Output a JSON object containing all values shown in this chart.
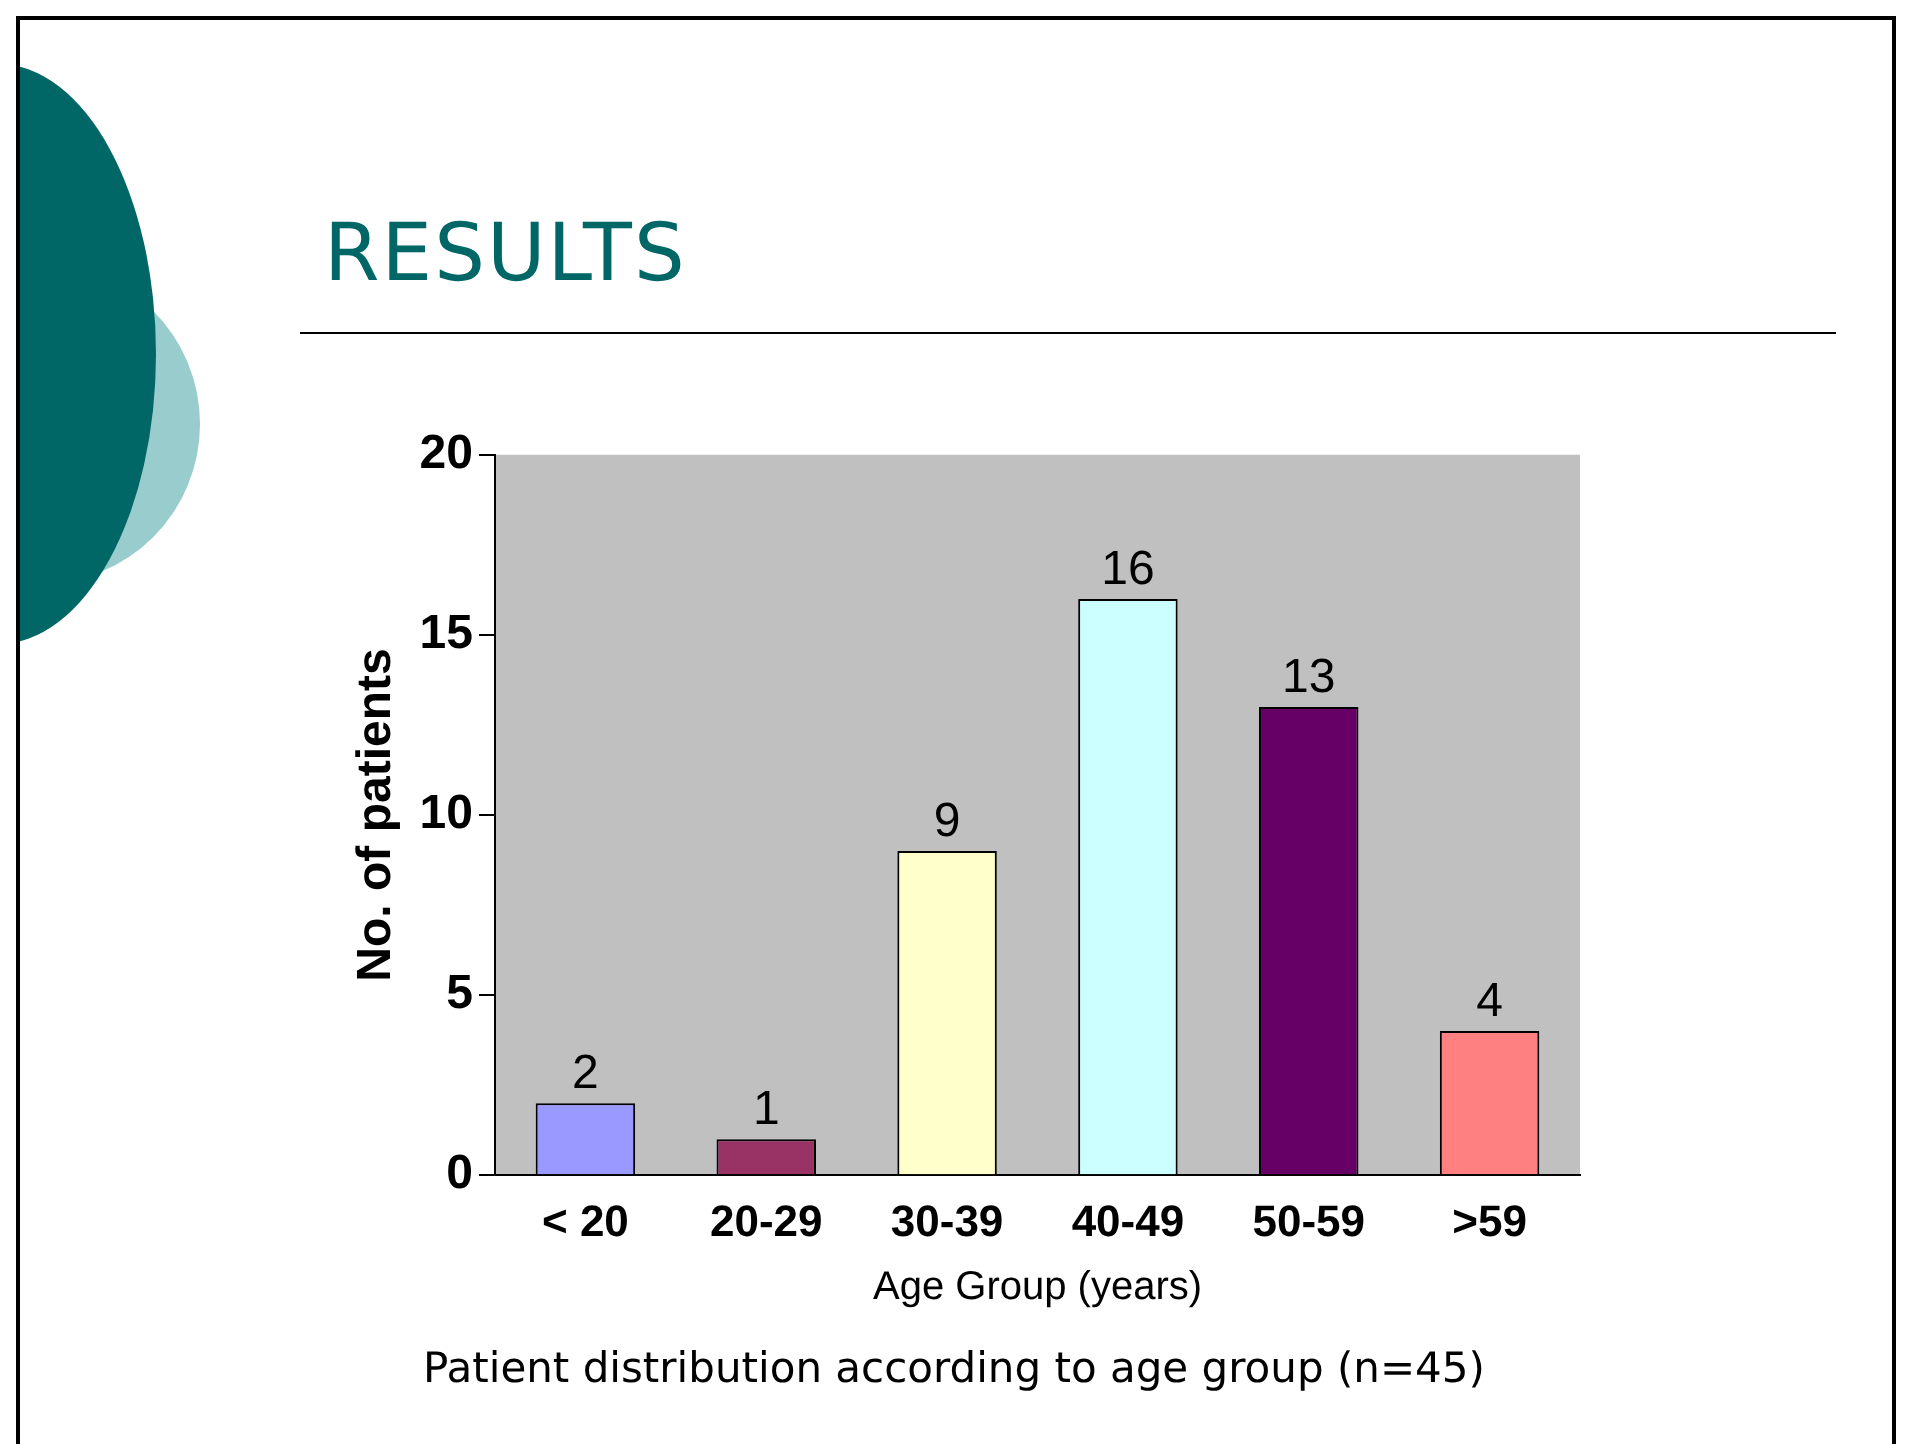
{
  "chart_data": {
    "type": "bar",
    "title": "RESULTS",
    "xlabel": "Age Group (years)",
    "ylabel": "No. of patients",
    "categories": [
      "< 20",
      "20-29",
      "30-39",
      "40-49",
      "50-59",
      ">59"
    ],
    "values": [
      2,
      1,
      9,
      16,
      13,
      4
    ],
    "colors": [
      "#9999ff",
      "#993366",
      "#ffffcc",
      "#ccffff",
      "#660066",
      "#ff8080"
    ],
    "ylim": [
      0,
      20
    ],
    "yticks": [
      0,
      5,
      10,
      15,
      20
    ],
    "grid": false,
    "legend": false,
    "data_labels": true,
    "annotations": [
      "Patient distribution according to age group (n=45)"
    ]
  }
}
